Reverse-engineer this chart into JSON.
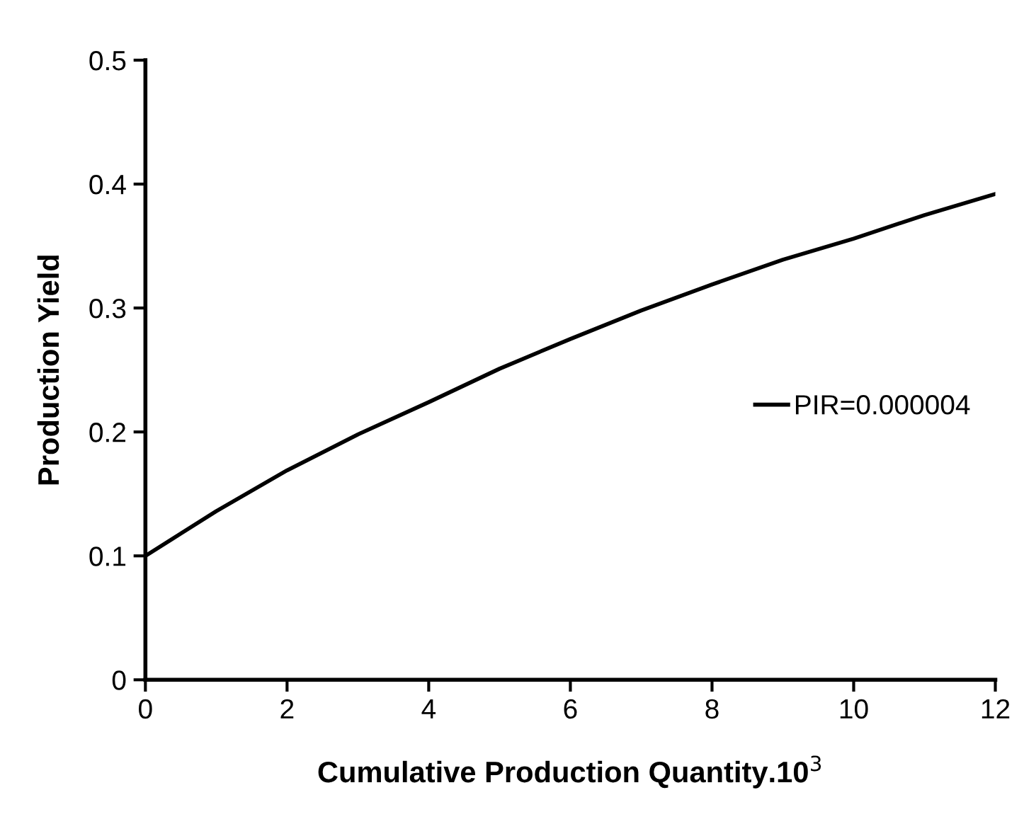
{
  "chart_data": {
    "type": "line",
    "xlabel": "Cumulative Production Quantity.10$^{3}$",
    "ylabel": "Production Yield",
    "x": [
      0,
      1,
      2,
      3,
      4,
      5,
      6,
      7,
      8,
      9,
      10,
      11,
      12
    ],
    "series": [
      {
        "name": "PIR=0.000004",
        "color": "#000000",
        "values": [
          0.1,
          0.136,
          0.169,
          0.198,
          0.224,
          0.251,
          0.275,
          0.298,
          0.319,
          0.339,
          0.356,
          0.375,
          0.392
        ]
      }
    ],
    "xlim": [
      0,
      12
    ],
    "xticks": [
      0,
      2,
      4,
      6,
      8,
      10,
      12
    ],
    "ylim": [
      0,
      0.5
    ],
    "yticks": [
      0,
      0.1,
      0.2,
      0.3,
      0.4,
      0.5
    ],
    "grid": false,
    "legend": "right",
    "marker": "none",
    "line_style": "solid"
  }
}
